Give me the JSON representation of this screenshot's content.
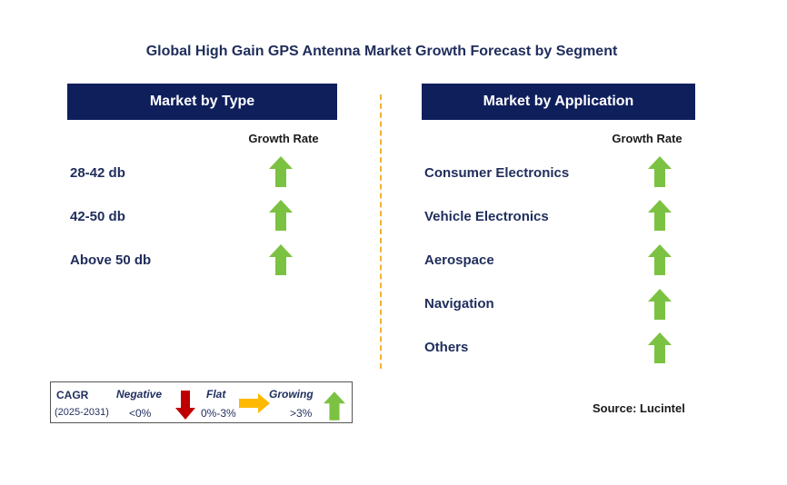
{
  "title": "Global High Gain GPS Antenna Market Growth Forecast by Segment",
  "left_panel": {
    "header": "Market by Type",
    "growth_header": "Growth Rate",
    "rows": [
      {
        "label": "28-42 db",
        "trend": "growing"
      },
      {
        "label": "42-50 db",
        "trend": "growing"
      },
      {
        "label": "Above 50 db",
        "trend": "growing"
      }
    ]
  },
  "right_panel": {
    "header": "Market by Application",
    "growth_header": "Growth Rate",
    "rows": [
      {
        "label": "Consumer Electronics",
        "trend": "growing"
      },
      {
        "label": "Vehicle Electronics",
        "trend": "growing"
      },
      {
        "label": "Aerospace",
        "trend": "growing"
      },
      {
        "label": "Navigation",
        "trend": "growing"
      },
      {
        "label": "Others",
        "trend": "growing"
      }
    ]
  },
  "legend": {
    "cagr_label": "CAGR",
    "period": "(2025-2031)",
    "negative_label": "Negative",
    "negative_value": "<0%",
    "flat_label": "Flat",
    "flat_value": "0%-3%",
    "growing_label": "Growing",
    "growing_value": ">3%"
  },
  "source": "Source: Lucintel",
  "colors": {
    "header_bg": "#0f1f5c",
    "growing": "#7cc242",
    "negative": "#c00000",
    "flat": "#ffb900",
    "divider": "#f2b233"
  }
}
